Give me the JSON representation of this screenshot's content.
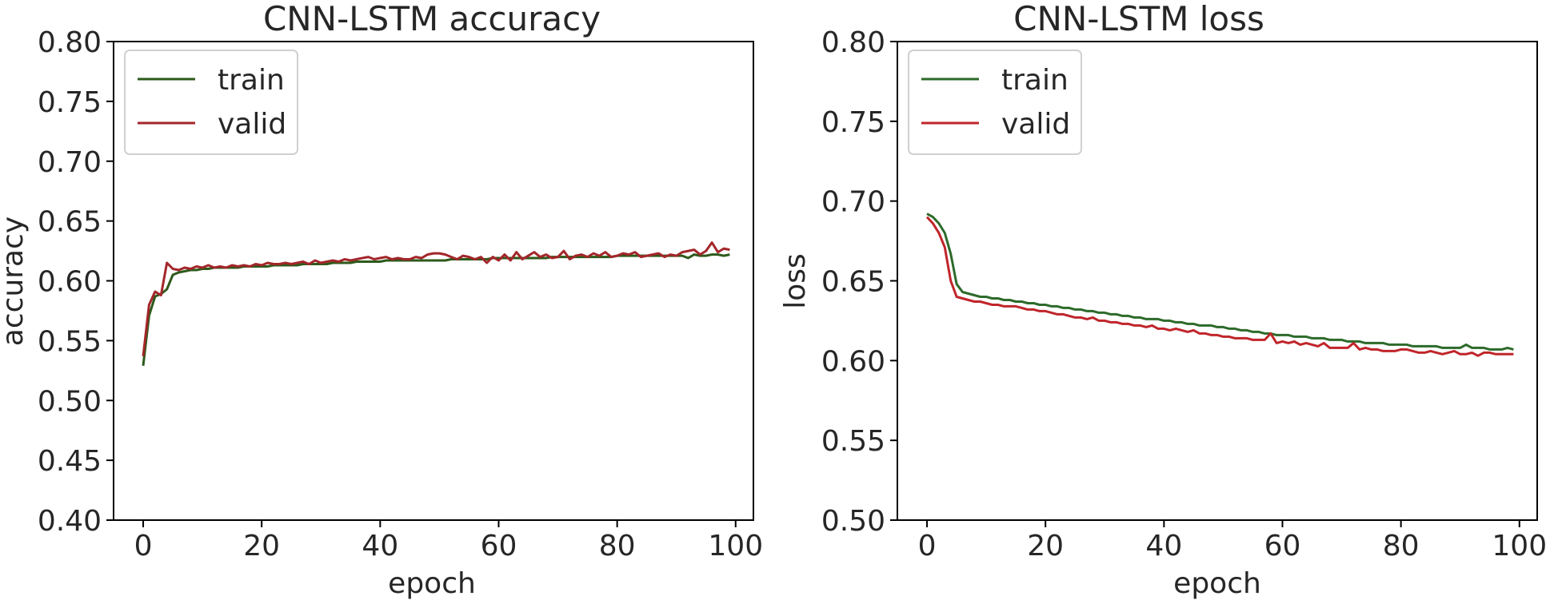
{
  "chart_data": [
    {
      "type": "line",
      "title": "CNN-LSTM accuracy",
      "xlabel": "epoch",
      "ylabel": "accuracy",
      "xlim": [
        -5,
        103
      ],
      "ylim": [
        0.4,
        0.8
      ],
      "xticks": [
        0,
        20,
        40,
        60,
        80,
        100
      ],
      "yticks": [
        0.4,
        0.45,
        0.5,
        0.55,
        0.6,
        0.65,
        0.7,
        0.75,
        0.8
      ],
      "ytick_labels": [
        "0.40",
        "0.45",
        "0.50",
        "0.55",
        "0.60",
        "0.65",
        "0.70",
        "0.75",
        "0.80"
      ],
      "grid": false,
      "legend": "top-left",
      "series": [
        {
          "name": "train",
          "color": "#2d5a1b",
          "values": [
            0.529,
            0.571,
            0.587,
            0.589,
            0.593,
            0.605,
            0.607,
            0.608,
            0.609,
            0.609,
            0.61,
            0.61,
            0.611,
            0.611,
            0.611,
            0.611,
            0.611,
            0.612,
            0.612,
            0.612,
            0.612,
            0.612,
            0.613,
            0.613,
            0.613,
            0.613,
            0.613,
            0.614,
            0.614,
            0.614,
            0.614,
            0.614,
            0.615,
            0.615,
            0.615,
            0.615,
            0.616,
            0.616,
            0.616,
            0.616,
            0.616,
            0.617,
            0.617,
            0.617,
            0.617,
            0.617,
            0.617,
            0.617,
            0.617,
            0.617,
            0.617,
            0.617,
            0.618,
            0.618,
            0.618,
            0.618,
            0.618,
            0.618,
            0.618,
            0.619,
            0.619,
            0.619,
            0.619,
            0.619,
            0.619,
            0.619,
            0.619,
            0.619,
            0.619,
            0.62,
            0.62,
            0.62,
            0.62,
            0.62,
            0.62,
            0.62,
            0.62,
            0.62,
            0.62,
            0.62,
            0.621,
            0.621,
            0.621,
            0.621,
            0.621,
            0.621,
            0.621,
            0.621,
            0.621,
            0.621,
            0.621,
            0.621,
            0.619,
            0.622,
            0.621,
            0.621,
            0.622,
            0.622,
            0.621,
            0.622
          ]
        },
        {
          "name": "valid",
          "color": "#a3262a",
          "values": [
            0.537,
            0.58,
            0.591,
            0.588,
            0.615,
            0.61,
            0.609,
            0.611,
            0.61,
            0.612,
            0.611,
            0.613,
            0.611,
            0.612,
            0.611,
            0.613,
            0.612,
            0.613,
            0.612,
            0.614,
            0.613,
            0.615,
            0.614,
            0.614,
            0.615,
            0.614,
            0.615,
            0.616,
            0.614,
            0.617,
            0.615,
            0.616,
            0.617,
            0.616,
            0.618,
            0.617,
            0.618,
            0.619,
            0.62,
            0.618,
            0.619,
            0.62,
            0.618,
            0.619,
            0.618,
            0.618,
            0.62,
            0.619,
            0.622,
            0.623,
            0.623,
            0.622,
            0.62,
            0.618,
            0.621,
            0.62,
            0.618,
            0.62,
            0.615,
            0.62,
            0.617,
            0.622,
            0.617,
            0.624,
            0.618,
            0.621,
            0.624,
            0.62,
            0.622,
            0.619,
            0.62,
            0.625,
            0.618,
            0.621,
            0.622,
            0.62,
            0.623,
            0.621,
            0.624,
            0.62,
            0.621,
            0.623,
            0.622,
            0.624,
            0.62,
            0.621,
            0.622,
            0.623,
            0.62,
            0.622,
            0.621,
            0.624,
            0.625,
            0.626,
            0.622,
            0.625,
            0.632,
            0.624,
            0.627,
            0.626
          ]
        }
      ]
    },
    {
      "type": "line",
      "title": "CNN-LSTM loss",
      "xlabel": "epoch",
      "ylabel": "loss",
      "xlim": [
        -5,
        103
      ],
      "ylim": [
        0.5,
        0.8
      ],
      "xticks": [
        0,
        20,
        40,
        60,
        80,
        100
      ],
      "yticks": [
        0.5,
        0.55,
        0.6,
        0.65,
        0.7,
        0.75,
        0.8
      ],
      "ytick_labels": [
        "0.50",
        "0.55",
        "0.60",
        "0.65",
        "0.70",
        "0.75",
        "0.80"
      ],
      "grid": false,
      "legend": "top-left",
      "series": [
        {
          "name": "train",
          "color": "#2d6a2a",
          "values": [
            0.692,
            0.69,
            0.686,
            0.68,
            0.667,
            0.648,
            0.643,
            0.642,
            0.641,
            0.64,
            0.64,
            0.639,
            0.639,
            0.638,
            0.638,
            0.637,
            0.637,
            0.636,
            0.636,
            0.635,
            0.635,
            0.634,
            0.634,
            0.633,
            0.633,
            0.632,
            0.632,
            0.631,
            0.631,
            0.63,
            0.63,
            0.629,
            0.629,
            0.628,
            0.628,
            0.627,
            0.627,
            0.626,
            0.626,
            0.626,
            0.625,
            0.625,
            0.624,
            0.624,
            0.623,
            0.623,
            0.622,
            0.622,
            0.622,
            0.621,
            0.621,
            0.62,
            0.62,
            0.619,
            0.619,
            0.618,
            0.618,
            0.617,
            0.617,
            0.616,
            0.616,
            0.616,
            0.615,
            0.615,
            0.615,
            0.614,
            0.614,
            0.614,
            0.613,
            0.613,
            0.613,
            0.612,
            0.612,
            0.612,
            0.611,
            0.611,
            0.611,
            0.611,
            0.61,
            0.61,
            0.61,
            0.61,
            0.609,
            0.609,
            0.609,
            0.609,
            0.609,
            0.608,
            0.608,
            0.608,
            0.608,
            0.61,
            0.608,
            0.608,
            0.608,
            0.607,
            0.607,
            0.607,
            0.608,
            0.607
          ]
        },
        {
          "name": "valid",
          "color": "#c0252a",
          "values": [
            0.69,
            0.686,
            0.68,
            0.671,
            0.65,
            0.64,
            0.639,
            0.638,
            0.637,
            0.637,
            0.636,
            0.635,
            0.635,
            0.634,
            0.634,
            0.634,
            0.633,
            0.632,
            0.632,
            0.631,
            0.631,
            0.63,
            0.629,
            0.629,
            0.628,
            0.627,
            0.627,
            0.626,
            0.627,
            0.625,
            0.625,
            0.624,
            0.624,
            0.623,
            0.623,
            0.622,
            0.622,
            0.621,
            0.622,
            0.62,
            0.62,
            0.619,
            0.62,
            0.619,
            0.618,
            0.619,
            0.617,
            0.617,
            0.616,
            0.616,
            0.615,
            0.615,
            0.614,
            0.614,
            0.614,
            0.613,
            0.613,
            0.613,
            0.617,
            0.611,
            0.612,
            0.611,
            0.612,
            0.61,
            0.611,
            0.61,
            0.609,
            0.611,
            0.608,
            0.608,
            0.608,
            0.608,
            0.611,
            0.607,
            0.608,
            0.607,
            0.607,
            0.606,
            0.606,
            0.606,
            0.607,
            0.607,
            0.606,
            0.605,
            0.605,
            0.606,
            0.605,
            0.604,
            0.605,
            0.606,
            0.604,
            0.604,
            0.605,
            0.603,
            0.605,
            0.605,
            0.604,
            0.604,
            0.604,
            0.604
          ]
        }
      ]
    }
  ]
}
